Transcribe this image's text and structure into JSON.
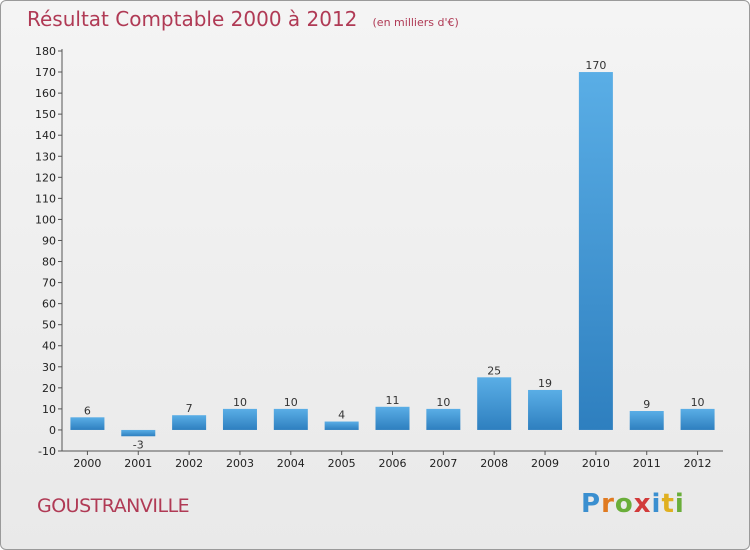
{
  "chart_data": {
    "type": "bar",
    "title": "Résultat Comptable 2000 à 2012",
    "subtitle": "(en milliers d'€)",
    "categories": [
      "2000",
      "2001",
      "2002",
      "2003",
      "2004",
      "2005",
      "2006",
      "2007",
      "2008",
      "2009",
      "2010",
      "2011",
      "2012"
    ],
    "values": [
      6,
      -3,
      7,
      10,
      10,
      4,
      11,
      10,
      25,
      19,
      170,
      9,
      10
    ],
    "data_labels": [
      "6",
      "-3",
      "7",
      "10",
      "10",
      "4",
      "11",
      "10",
      "25",
      "19",
      "170",
      "9",
      "10"
    ],
    "ylim": [
      -10,
      180
    ],
    "ytick_step": 10,
    "grid": false,
    "xlabel": "",
    "ylabel": "",
    "colors": {
      "bar_top": "#5aaee6",
      "bar_bottom": "#2e7fbf",
      "title": "#b03a55"
    }
  },
  "footer": {
    "commune": "GOUSTRANVILLE"
  },
  "logo": {
    "text": "Proxiti",
    "letter_colors": [
      "#3a8fd0",
      "#e07a20",
      "#6aae3a",
      "#d23a3a",
      "#3a8fd0",
      "#e0b020",
      "#6aae3a"
    ]
  }
}
